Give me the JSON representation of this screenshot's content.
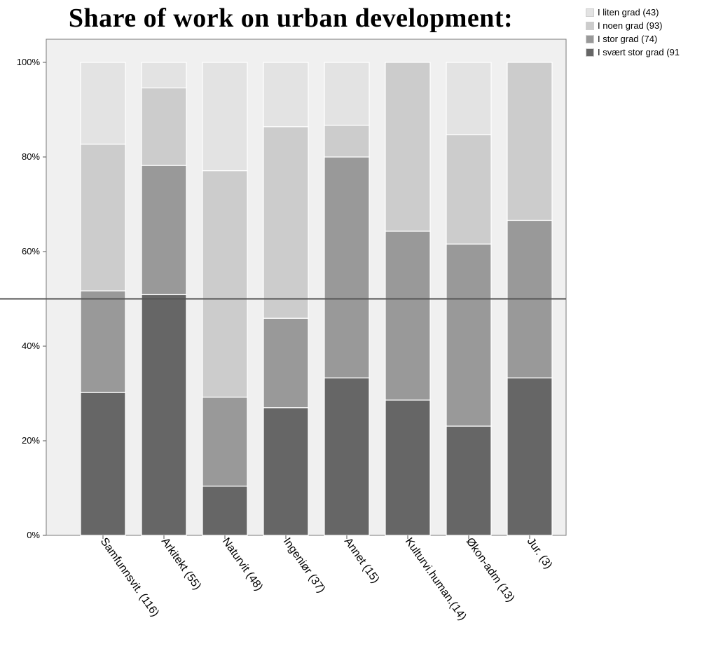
{
  "title": "Share of work on urban development:",
  "chart_data": {
    "type": "bar",
    "stacked": true,
    "title": "Share of work on urban development:",
    "xlabel": "",
    "ylabel": "",
    "ylim": [
      0,
      100
    ],
    "yticks": [
      "0%",
      "20%",
      "40%",
      "60%",
      "80%",
      "100%"
    ],
    "categories": [
      "Samfunnsvit. (116)",
      "Arkitekt (55)",
      "Naturvit (48)",
      "Ingeniør (37)",
      "Annet (15)",
      "Kulturvi.human.(14)",
      "Økon-adm (13)",
      "Jur. (3)"
    ],
    "series": [
      {
        "name": "I svært stor grad (91",
        "color": "#666666",
        "values": [
          30.2,
          50.9,
          10.4,
          27.0,
          33.3,
          28.6,
          23.1,
          33.3
        ]
      },
      {
        "name": "I stor grad (74)",
        "color": "#999999",
        "values": [
          21.5,
          27.3,
          18.8,
          18.9,
          46.7,
          35.7,
          38.5,
          33.3
        ]
      },
      {
        "name": "I noen grad (93)",
        "color": "#cccccc",
        "values": [
          31.0,
          16.4,
          47.9,
          40.5,
          6.7,
          35.7,
          23.1,
          33.4
        ]
      },
      {
        "name": "I liten grad (43)",
        "color": "#e3e3e3",
        "values": [
          17.3,
          5.4,
          22.9,
          13.6,
          13.3,
          0.0,
          15.3,
          0.0
        ]
      }
    ],
    "reference_line": 50,
    "grid": false,
    "legend_position": "top-right",
    "plot_background": "#f0f0f0"
  }
}
